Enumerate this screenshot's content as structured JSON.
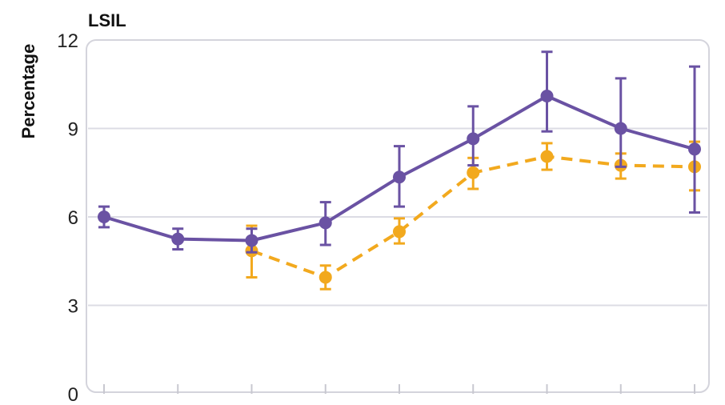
{
  "chart_data": {
    "type": "line",
    "title": "LSIL",
    "ylabel": "Percentage",
    "xlabel": "",
    "ylim": [
      0,
      12
    ],
    "yticks": [
      0,
      3,
      6,
      9,
      12
    ],
    "x": [
      1,
      2,
      3,
      4,
      5,
      6,
      7,
      8,
      9
    ],
    "grid": true,
    "legend": "none",
    "series": [
      {
        "color": "#6a52a3",
        "line": "solid",
        "x": [
          1,
          2,
          3,
          4,
          5,
          6,
          7,
          8,
          9
        ],
        "values": [
          6.0,
          5.25,
          5.2,
          5.8,
          7.35,
          8.65,
          10.1,
          9.0,
          8.3
        ],
        "err_low": [
          5.65,
          4.9,
          4.8,
          5.05,
          6.35,
          7.75,
          8.9,
          7.7,
          6.15
        ],
        "err_high": [
          6.35,
          5.6,
          5.6,
          6.5,
          8.4,
          9.75,
          11.6,
          10.7,
          11.1
        ]
      },
      {
        "color": "#f2a91e",
        "line": "dashed",
        "x": [
          3,
          4,
          5,
          6,
          7,
          8,
          9
        ],
        "values": [
          4.85,
          3.95,
          5.5,
          7.5,
          8.05,
          7.75,
          7.7
        ],
        "err_low": [
          3.95,
          3.55,
          5.1,
          6.95,
          7.6,
          7.3,
          6.9
        ],
        "err_high": [
          5.7,
          4.35,
          5.95,
          8.0,
          8.5,
          8.15,
          8.55
        ]
      }
    ]
  }
}
